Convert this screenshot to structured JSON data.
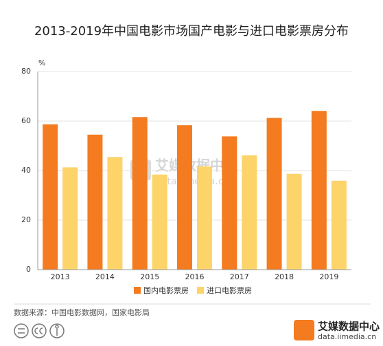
{
  "chart_data": {
    "type": "bar",
    "title": "2013-2019年中国电影市场国产电影与进口电影票房分布",
    "y_label": "%",
    "categories": [
      "2013",
      "2014",
      "2015",
      "2016",
      "2017",
      "2018",
      "2019"
    ],
    "series": [
      {
        "name": "国内电影票房",
        "color": "#f47b20",
        "values": [
          58.7,
          54.5,
          61.6,
          58.3,
          53.8,
          61.3,
          64.1
        ]
      },
      {
        "name": "进口电影票房",
        "color": "#fdd46a",
        "values": [
          41.3,
          45.5,
          38.4,
          41.7,
          46.2,
          38.7,
          35.9
        ]
      }
    ],
    "ylim": [
      0,
      80
    ],
    "yticks": [
      0,
      20,
      40,
      60,
      80
    ],
    "grid": true,
    "source": "数据来源：中国电影数据网，国家电影局",
    "watermark": {
      "name": "艾媒数据中心",
      "url": "data.iimedia.cn"
    },
    "logo": {
      "name": "艾媒数据中心",
      "url": "data.iimedia.cn"
    }
  }
}
